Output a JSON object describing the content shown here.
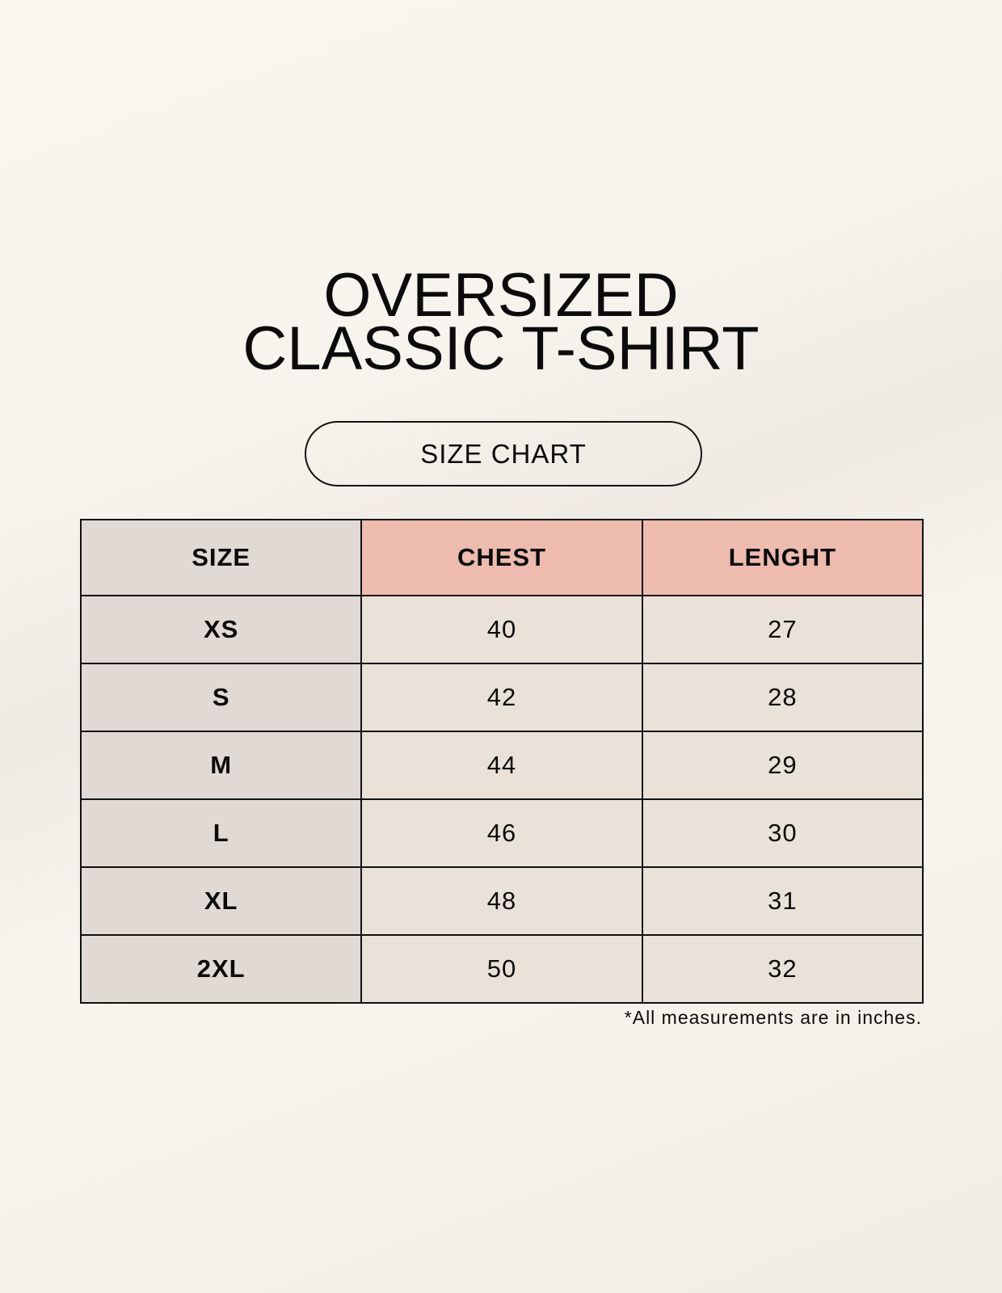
{
  "title": {
    "line1": "OVERSIZED",
    "line2": "CLASSIC T-SHIRT"
  },
  "badge": "SIZE CHART",
  "table": {
    "headers": [
      "SIZE",
      "CHEST",
      "LENGHT"
    ],
    "rows": [
      [
        "XS",
        "40",
        "27"
      ],
      [
        "S",
        "42",
        "28"
      ],
      [
        "M",
        "44",
        "29"
      ],
      [
        "L",
        "46",
        "30"
      ],
      [
        "XL",
        "48",
        "31"
      ],
      [
        "2XL",
        "50",
        "32"
      ]
    ]
  },
  "footnote": "*All measurements are in inches.",
  "colors": {
    "header_accent": "#edbcae",
    "size_column": "#e1d9d3",
    "cell": "#eae2d8"
  }
}
